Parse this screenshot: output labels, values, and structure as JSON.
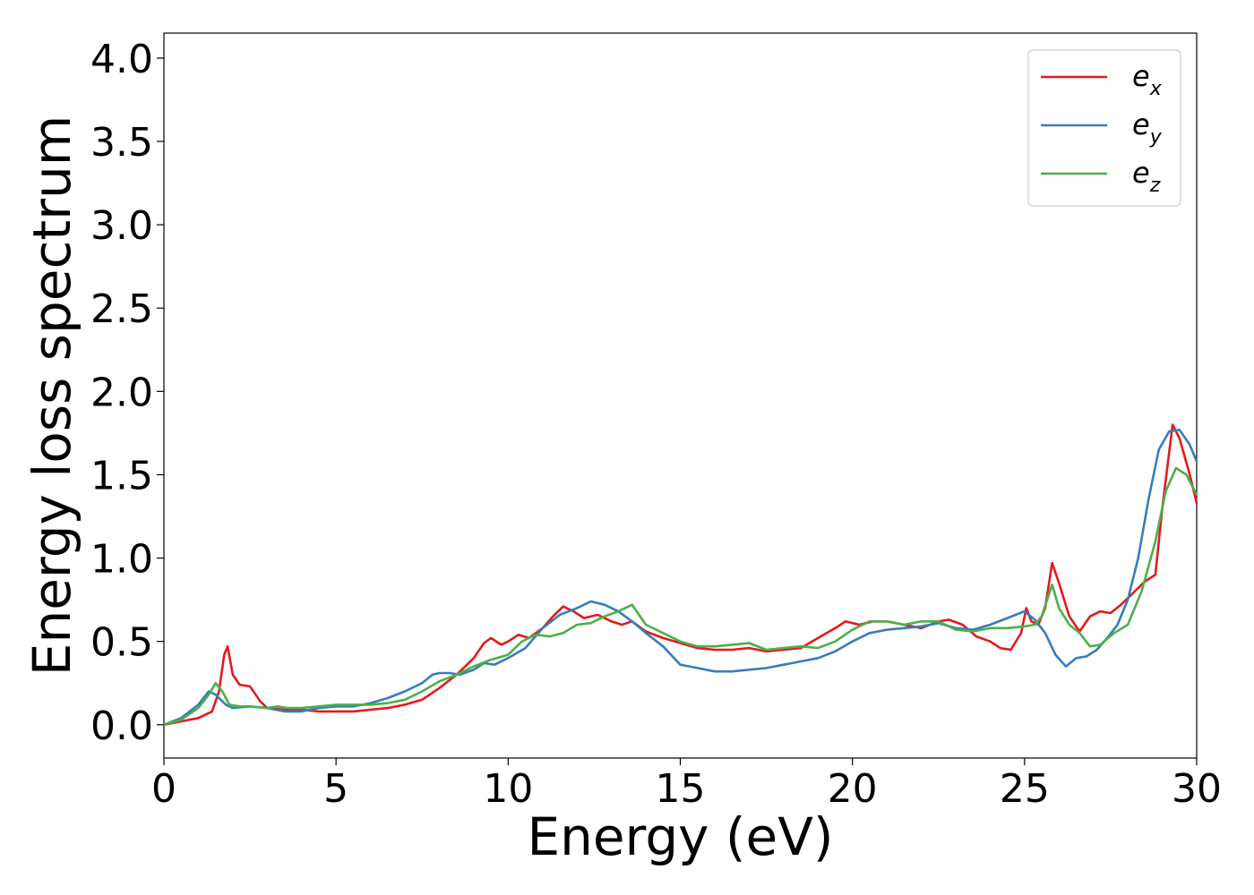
{
  "chart_data": {
    "type": "line",
    "title": "",
    "xlabel": "Energy (eV)",
    "ylabel": "Energy loss spectrum",
    "xlim": [
      0,
      30
    ],
    "ylim": [
      -0.2,
      4.15
    ],
    "xticks": [
      0,
      5,
      10,
      15,
      20,
      25,
      30
    ],
    "xtick_labels": [
      "0",
      "5",
      "10",
      "15",
      "20",
      "25",
      "30"
    ],
    "yticks": [
      0.0,
      0.5,
      1.0,
      1.5,
      2.0,
      2.5,
      3.0,
      3.5,
      4.0
    ],
    "ytick_labels": [
      "0.0",
      "0.5",
      "1.0",
      "1.5",
      "2.0",
      "2.5",
      "3.0",
      "3.5",
      "4.0"
    ],
    "grid": false,
    "legend_position": "top-right",
    "series": [
      {
        "name": "e_x",
        "legend_base": "e",
        "legend_sub": "x",
        "color": "#e41a1c",
        "x": [
          0,
          0.5,
          1.0,
          1.4,
          1.6,
          1.75,
          1.85,
          2.0,
          2.2,
          2.5,
          2.8,
          3.0,
          3.5,
          4.0,
          4.5,
          5.0,
          5.5,
          6.0,
          6.5,
          7.0,
          7.5,
          8.0,
          8.5,
          9.0,
          9.3,
          9.5,
          9.8,
          10.0,
          10.3,
          10.6,
          11.0,
          11.3,
          11.6,
          11.9,
          12.2,
          12.6,
          13.0,
          13.3,
          13.6,
          14.0,
          14.5,
          15.0,
          15.5,
          16.0,
          16.5,
          17.0,
          17.5,
          18.0,
          18.5,
          19.0,
          19.5,
          19.8,
          20.2,
          20.6,
          21.0,
          21.5,
          22.0,
          22.5,
          22.8,
          23.2,
          23.6,
          24.0,
          24.3,
          24.6,
          24.9,
          25.05,
          25.2,
          25.4,
          25.6,
          25.8,
          26.0,
          26.3,
          26.6,
          26.9,
          27.2,
          27.5,
          27.8,
          28.1,
          28.5,
          28.8,
          29.0,
          29.3,
          29.5,
          29.8,
          30.0
        ],
        "y": [
          0.0,
          0.02,
          0.04,
          0.08,
          0.2,
          0.42,
          0.47,
          0.3,
          0.24,
          0.23,
          0.14,
          0.1,
          0.09,
          0.09,
          0.08,
          0.08,
          0.08,
          0.09,
          0.1,
          0.12,
          0.15,
          0.22,
          0.3,
          0.4,
          0.49,
          0.52,
          0.48,
          0.5,
          0.54,
          0.52,
          0.58,
          0.65,
          0.71,
          0.68,
          0.64,
          0.66,
          0.62,
          0.6,
          0.62,
          0.56,
          0.52,
          0.49,
          0.46,
          0.45,
          0.45,
          0.46,
          0.44,
          0.45,
          0.46,
          0.52,
          0.58,
          0.62,
          0.6,
          0.62,
          0.62,
          0.6,
          0.58,
          0.62,
          0.63,
          0.6,
          0.53,
          0.5,
          0.46,
          0.45,
          0.55,
          0.7,
          0.62,
          0.6,
          0.7,
          0.97,
          0.85,
          0.65,
          0.56,
          0.65,
          0.68,
          0.67,
          0.72,
          0.78,
          0.86,
          0.9,
          1.3,
          1.8,
          1.72,
          1.5,
          1.33
        ]
      },
      {
        "name": "e_y",
        "legend_base": "e",
        "legend_sub": "y",
        "color": "#377eb8",
        "x": [
          0,
          0.5,
          1.0,
          1.3,
          1.5,
          1.8,
          2.0,
          2.5,
          3.0,
          3.5,
          4.0,
          4.5,
          5.0,
          5.5,
          6.0,
          6.5,
          7.0,
          7.5,
          7.8,
          8.0,
          8.3,
          8.6,
          9.0,
          9.3,
          9.6,
          10.0,
          10.5,
          11.0,
          11.5,
          12.0,
          12.4,
          12.8,
          13.2,
          13.6,
          14.0,
          14.5,
          15.0,
          15.5,
          16.0,
          16.5,
          17.0,
          17.5,
          18.0,
          18.5,
          19.0,
          19.5,
          20.0,
          20.5,
          21.0,
          21.5,
          22.0,
          22.5,
          23.0,
          23.5,
          24.0,
          24.5,
          25.0,
          25.3,
          25.6,
          25.9,
          26.2,
          26.5,
          26.8,
          27.1,
          27.4,
          27.7,
          28.0,
          28.3,
          28.6,
          28.9,
          29.2,
          29.5,
          29.8,
          30.0
        ],
        "y": [
          0.0,
          0.04,
          0.12,
          0.2,
          0.18,
          0.12,
          0.1,
          0.11,
          0.1,
          0.08,
          0.08,
          0.1,
          0.11,
          0.11,
          0.13,
          0.16,
          0.2,
          0.25,
          0.3,
          0.31,
          0.31,
          0.3,
          0.33,
          0.37,
          0.36,
          0.4,
          0.46,
          0.58,
          0.66,
          0.7,
          0.74,
          0.72,
          0.68,
          0.62,
          0.55,
          0.47,
          0.36,
          0.34,
          0.32,
          0.32,
          0.33,
          0.34,
          0.36,
          0.38,
          0.4,
          0.44,
          0.5,
          0.55,
          0.57,
          0.58,
          0.59,
          0.61,
          0.58,
          0.57,
          0.6,
          0.64,
          0.68,
          0.63,
          0.55,
          0.42,
          0.35,
          0.4,
          0.41,
          0.45,
          0.52,
          0.6,
          0.75,
          1.0,
          1.35,
          1.65,
          1.76,
          1.77,
          1.68,
          1.58
        ]
      },
      {
        "name": "e_z",
        "legend_base": "e",
        "legend_sub": "z",
        "color": "#4daf4a",
        "x": [
          0,
          0.5,
          1.0,
          1.3,
          1.5,
          1.7,
          1.9,
          2.2,
          2.5,
          3.0,
          3.3,
          3.6,
          4.0,
          4.5,
          5.0,
          5.5,
          6.0,
          6.5,
          7.0,
          7.5,
          8.0,
          8.5,
          9.0,
          9.5,
          10.0,
          10.4,
          10.8,
          11.2,
          11.6,
          12.0,
          12.4,
          12.8,
          13.2,
          13.6,
          14.0,
          14.5,
          15.0,
          15.5,
          16.0,
          16.5,
          17.0,
          17.5,
          18.0,
          18.5,
          19.0,
          19.5,
          20.0,
          20.5,
          21.0,
          21.5,
          22.0,
          22.5,
          23.0,
          23.5,
          24.0,
          24.5,
          25.0,
          25.3,
          25.5,
          25.8,
          26.0,
          26.3,
          26.6,
          26.9,
          27.2,
          27.6,
          28.0,
          28.4,
          28.8,
          29.1,
          29.4,
          29.7,
          30.0
        ],
        "y": [
          0.0,
          0.03,
          0.1,
          0.18,
          0.25,
          0.2,
          0.12,
          0.11,
          0.11,
          0.1,
          0.11,
          0.1,
          0.1,
          0.11,
          0.12,
          0.12,
          0.12,
          0.13,
          0.15,
          0.2,
          0.26,
          0.3,
          0.35,
          0.39,
          0.42,
          0.5,
          0.54,
          0.53,
          0.55,
          0.6,
          0.61,
          0.65,
          0.68,
          0.72,
          0.6,
          0.55,
          0.5,
          0.47,
          0.47,
          0.48,
          0.49,
          0.45,
          0.46,
          0.47,
          0.46,
          0.5,
          0.57,
          0.62,
          0.62,
          0.6,
          0.62,
          0.62,
          0.57,
          0.56,
          0.58,
          0.58,
          0.59,
          0.6,
          0.65,
          0.84,
          0.7,
          0.6,
          0.55,
          0.47,
          0.48,
          0.55,
          0.6,
          0.8,
          1.1,
          1.4,
          1.54,
          1.5,
          1.38
        ]
      }
    ]
  }
}
